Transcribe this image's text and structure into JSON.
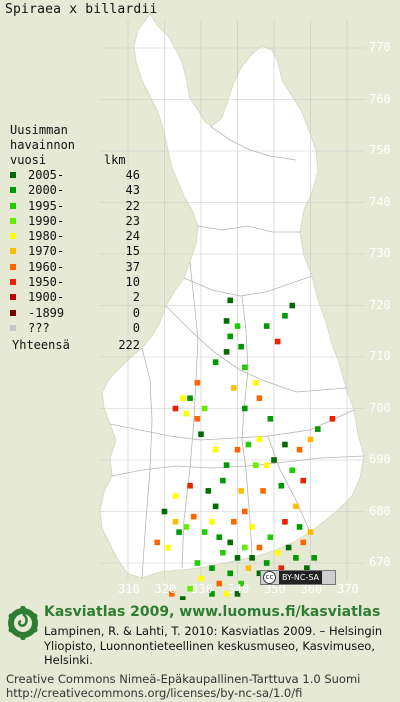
{
  "title": "Spiraea x billardii",
  "legend": {
    "heading_lines": [
      "Uusimman",
      "havainnon",
      "vuosi        lkm"
    ],
    "items": [
      {
        "label": "2005-",
        "count": "46",
        "color": "#006b00"
      },
      {
        "label": "2000-",
        "count": "43",
        "color": "#009900"
      },
      {
        "label": "1995-",
        "count": "22",
        "color": "#22cc00"
      },
      {
        "label": "1990-",
        "count": "23",
        "color": "#66ee00"
      },
      {
        "label": "1980-",
        "count": "24",
        "color": "#ffff00"
      },
      {
        "label": "1970-",
        "count": "15",
        "color": "#ffbb00"
      },
      {
        "label": "1960-",
        "count": "37",
        "color": "#ff6600"
      },
      {
        "label": "1950-",
        "count": "10",
        "color": "#ee2200"
      },
      {
        "label": "1900-",
        "count": "2",
        "color": "#bb0000"
      },
      {
        "label": "-1899",
        "count": "0",
        "color": "#7a0000"
      },
      {
        "label": "???",
        "count": "0",
        "color": "#c8c8c8"
      }
    ],
    "total_label": "Yhteensä",
    "total_count": "222"
  },
  "axes": {
    "y_ticks": [
      "770",
      "760",
      "750",
      "740",
      "730",
      "720",
      "710",
      "700",
      "690",
      "680",
      "670"
    ],
    "x_ticks": [
      "310",
      "320",
      "330",
      "340",
      "350",
      "360",
      "370"
    ]
  },
  "license_badge": {
    "icon": "cc-icon",
    "text": "BY-NC-SA"
  },
  "footer": {
    "site_line": "Kasviatlas 2009, www.luomus.fi/kasviatlas",
    "citation": "Lampinen, R. & Lahti, T. 2010: Kasviatlas 2009. – Helsingin Yliopisto, Luonnontieteellinen keskusmuseo, Kasvimuseo, Helsinki.",
    "license": "Creative Commons Nimeä-Epäkaupallinen-Tarttuva 1.0 Suomi http://creativecommons.org/licenses/by-nc-sa/1.0/fi"
  },
  "colors": {
    "background": "#e6e9d4",
    "land": "#ffffff",
    "grid": "#c9c9c9",
    "border": "#aaaaaa"
  },
  "observations": [
    {
      "e": 355,
      "n": 720,
      "c": "#006b00"
    },
    {
      "e": 353,
      "n": 718,
      "c": "#009900"
    },
    {
      "e": 338,
      "n": 721,
      "c": "#006b00"
    },
    {
      "e": 337,
      "n": 717,
      "c": "#006b00"
    },
    {
      "e": 338,
      "n": 714,
      "c": "#009900"
    },
    {
      "e": 337,
      "n": 711,
      "c": "#006b00"
    },
    {
      "e": 340,
      "n": 716,
      "c": "#22cc00"
    },
    {
      "e": 341,
      "n": 712,
      "c": "#009900"
    },
    {
      "e": 351,
      "n": 713,
      "c": "#ee2200"
    },
    {
      "e": 348,
      "n": 716,
      "c": "#009900"
    },
    {
      "e": 342,
      "n": 708,
      "c": "#22cc00"
    },
    {
      "e": 339,
      "n": 704,
      "c": "#ffbb00"
    },
    {
      "e": 334,
      "n": 709,
      "c": "#009900"
    },
    {
      "e": 329,
      "n": 705,
      "c": "#ff6600"
    },
    {
      "e": 327,
      "n": 702,
      "c": "#009900"
    },
    {
      "e": 325,
      "n": 702,
      "c": "#ffff00"
    },
    {
      "e": 323,
      "n": 700,
      "c": "#ee2200"
    },
    {
      "e": 326,
      "n": 699,
      "c": "#ffff00"
    },
    {
      "e": 329,
      "n": 698,
      "c": "#ff6600"
    },
    {
      "e": 330,
      "n": 695,
      "c": "#006b00"
    },
    {
      "e": 331,
      "n": 700,
      "c": "#66ee00"
    },
    {
      "e": 345,
      "n": 705,
      "c": "#ffff00"
    },
    {
      "e": 346,
      "n": 702,
      "c": "#ff6600"
    },
    {
      "e": 349,
      "n": 698,
      "c": "#009900"
    },
    {
      "e": 346,
      "n": 694,
      "c": "#ffff00"
    },
    {
      "e": 343,
      "n": 693,
      "c": "#22cc00"
    },
    {
      "e": 340,
      "n": 692,
      "c": "#ff6600"
    },
    {
      "e": 337,
      "n": 689,
      "c": "#009900"
    },
    {
      "e": 345,
      "n": 689,
      "c": "#66ee00"
    },
    {
      "e": 348,
      "n": 689,
      "c": "#ffff00"
    },
    {
      "e": 350,
      "n": 690,
      "c": "#006b00"
    },
    {
      "e": 353,
      "n": 693,
      "c": "#006b00"
    },
    {
      "e": 357,
      "n": 692,
      "c": "#ff6600"
    },
    {
      "e": 362,
      "n": 696,
      "c": "#009900"
    },
    {
      "e": 366,
      "n": 698,
      "c": "#ee2200"
    },
    {
      "e": 358,
      "n": 686,
      "c": "#ee2200"
    },
    {
      "e": 352,
      "n": 685,
      "c": "#009900"
    },
    {
      "e": 347,
      "n": 684,
      "c": "#ff6600"
    },
    {
      "e": 341,
      "n": 684,
      "c": "#ffbb00"
    },
    {
      "e": 336,
      "n": 686,
      "c": "#009900"
    },
    {
      "e": 332,
      "n": 684,
      "c": "#006b00"
    },
    {
      "e": 327,
      "n": 685,
      "c": "#ee2200"
    },
    {
      "e": 323,
      "n": 683,
      "c": "#ffff00"
    },
    {
      "e": 320,
      "n": 680,
      "c": "#006b00"
    },
    {
      "e": 323,
      "n": 678,
      "c": "#ffbb00"
    },
    {
      "e": 326,
      "n": 677,
      "c": "#66ee00"
    },
    {
      "e": 328,
      "n": 679,
      "c": "#ff6600"
    },
    {
      "e": 331,
      "n": 676,
      "c": "#22cc00"
    },
    {
      "e": 333,
      "n": 678,
      "c": "#ffff00"
    },
    {
      "e": 335,
      "n": 675,
      "c": "#009900"
    },
    {
      "e": 336,
      "n": 672,
      "c": "#22cc00"
    },
    {
      "e": 338,
      "n": 674,
      "c": "#006b00"
    },
    {
      "e": 340,
      "n": 671,
      "c": "#006b00"
    },
    {
      "e": 342,
      "n": 673,
      "c": "#66ee00"
    },
    {
      "e": 344,
      "n": 671,
      "c": "#006b00"
    },
    {
      "e": 346,
      "n": 673,
      "c": "#ff6600"
    },
    {
      "e": 349,
      "n": 675,
      "c": "#22cc00"
    },
    {
      "e": 351,
      "n": 672,
      "c": "#ffff00"
    },
    {
      "e": 354,
      "n": 673,
      "c": "#006b00"
    },
    {
      "e": 356,
      "n": 671,
      "c": "#009900"
    },
    {
      "e": 358,
      "n": 674,
      "c": "#ff6600"
    },
    {
      "e": 360,
      "n": 676,
      "c": "#ffbb00"
    },
    {
      "e": 357,
      "n": 677,
      "c": "#009900"
    },
    {
      "e": 353,
      "n": 678,
      "c": "#ee2200"
    },
    {
      "e": 344,
      "n": 677,
      "c": "#ffff00"
    },
    {
      "e": 339,
      "n": 678,
      "c": "#ff6600"
    },
    {
      "e": 333,
      "n": 669,
      "c": "#009900"
    },
    {
      "e": 330,
      "n": 667,
      "c": "#ffff00"
    },
    {
      "e": 327,
      "n": 665,
      "c": "#66ee00"
    },
    {
      "e": 325,
      "n": 663,
      "c": "#006b00"
    },
    {
      "e": 322,
      "n": 664,
      "c": "#ff6600"
    },
    {
      "e": 329,
      "n": 670,
      "c": "#22cc00"
    },
    {
      "e": 335,
      "n": 666,
      "c": "#ff6600"
    },
    {
      "e": 338,
      "n": 668,
      "c": "#009900"
    },
    {
      "e": 341,
      "n": 666,
      "c": "#22cc00"
    },
    {
      "e": 343,
      "n": 669,
      "c": "#ffbb00"
    },
    {
      "e": 346,
      "n": 668,
      "c": "#006b00"
    },
    {
      "e": 348,
      "n": 670,
      "c": "#009900"
    },
    {
      "e": 352,
      "n": 669,
      "c": "#ee2200"
    },
    {
      "e": 355,
      "n": 668,
      "c": "#ff6600"
    },
    {
      "e": 359,
      "n": 669,
      "c": "#006b00"
    },
    {
      "e": 361,
      "n": 671,
      "c": "#009900"
    },
    {
      "e": 324,
      "n": 676,
      "c": "#009900"
    },
    {
      "e": 321,
      "n": 673,
      "c": "#ffff00"
    },
    {
      "e": 318,
      "n": 674,
      "c": "#ff6600"
    },
    {
      "e": 334,
      "n": 681,
      "c": "#006b00"
    },
    {
      "e": 342,
      "n": 680,
      "c": "#ff6600"
    },
    {
      "e": 356,
      "n": 681,
      "c": "#ffbb00"
    },
    {
      "e": 337,
      "n": 664,
      "c": "#ffff00"
    },
    {
      "e": 340,
      "n": 664,
      "c": "#006b00"
    },
    {
      "e": 330,
      "n": 662,
      "c": "#ffbb00"
    },
    {
      "e": 333,
      "n": 664,
      "c": "#009900"
    },
    {
      "e": 360,
      "n": 694,
      "c": "#ffbb00"
    },
    {
      "e": 355,
      "n": 688,
      "c": "#22cc00"
    },
    {
      "e": 342,
      "n": 700,
      "c": "#009900"
    },
    {
      "e": 334,
      "n": 692,
      "c": "#ffff00"
    }
  ]
}
